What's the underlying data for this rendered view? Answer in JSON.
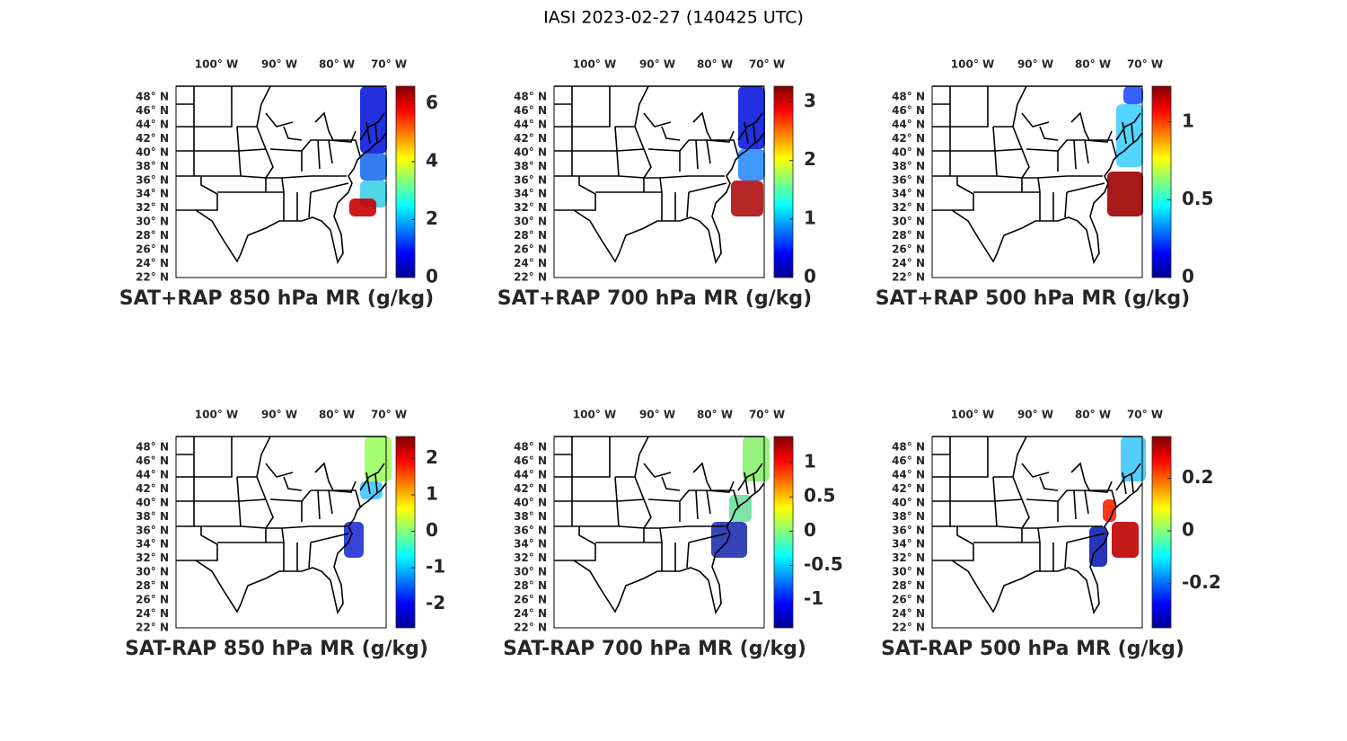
{
  "title": "IASI 2023-02-27 (140425 UTC)",
  "panels": [
    {
      "label": "SAT+RAP 850 hPa MR (g/kg)",
      "lon_ticks": [
        "100° W",
        "90° W",
        "80° W",
        "70° W"
      ],
      "lat_ticks": [
        "48° N",
        "46° N",
        "44° N",
        "42° N",
        "40° N",
        "38° N",
        "36° N",
        "34° N",
        "32° N",
        "30° N",
        "28° N",
        "26° N",
        "24° N",
        "22° N"
      ],
      "colorbar": {
        "lim": [
          0,
          6.6
        ],
        "ticks": [
          0,
          2,
          4,
          6
        ]
      }
    },
    {
      "label": "SAT+RAP 700 hPa MR (g/kg)",
      "lon_ticks": [
        "100° W",
        "90° W",
        "80° W",
        "70° W"
      ],
      "lat_ticks": [
        "48° N",
        "46° N",
        "44° N",
        "42° N",
        "40° N",
        "38° N",
        "36° N",
        "34° N",
        "32° N",
        "30° N",
        "28° N",
        "26° N",
        "24° N",
        "22° N"
      ],
      "colorbar": {
        "lim": [
          0,
          3.27
        ],
        "ticks": [
          0,
          1,
          2,
          3
        ]
      }
    },
    {
      "label": "SAT+RAP 500 hPa MR (g/kg)",
      "lon_ticks": [
        "100° W",
        "90° W",
        "80° W",
        "70° W"
      ],
      "lat_ticks": [
        "48° N",
        "46° N",
        "44° N",
        "42° N",
        "40° N",
        "38° N",
        "36° N",
        "34° N",
        "32° N",
        "30° N",
        "28° N",
        "26° N",
        "24° N",
        "22° N"
      ],
      "colorbar": {
        "lim": [
          0,
          1.23
        ],
        "ticks": [
          0,
          0.5,
          1
        ]
      }
    },
    {
      "label": "SAT-RAP 850 hPa MR (g/kg)",
      "lon_ticks": [
        "100° W",
        "90° W",
        "80° W",
        "70° W"
      ],
      "lat_ticks": [
        "48° N",
        "46° N",
        "44° N",
        "42° N",
        "40° N",
        "38° N",
        "36° N",
        "34° N",
        "32° N",
        "30° N",
        "28° N",
        "26° N",
        "24° N",
        "22° N"
      ],
      "colorbar": {
        "lim": [
          -2.65,
          2.6
        ],
        "ticks": [
          -2,
          -1,
          0,
          1,
          2
        ]
      }
    },
    {
      "label": "SAT-RAP 700 hPa MR (g/kg)",
      "lon_ticks": [
        "100° W",
        "90° W",
        "80° W",
        "70° W"
      ],
      "lat_ticks": [
        "48° N",
        "46° N",
        "44° N",
        "42° N",
        "40° N",
        "38° N",
        "36° N",
        "34° N",
        "32° N",
        "30° N",
        "28° N",
        "26° N",
        "24° N",
        "22° N"
      ],
      "colorbar": {
        "lim": [
          -1.41,
          1.38
        ],
        "ticks": [
          -1,
          -0.5,
          0,
          0.5,
          1
        ]
      }
    },
    {
      "label": "SAT-RAP 500 hPa MR (g/kg)",
      "lon_ticks": [
        "100° W",
        "90° W",
        "80° W",
        "70° W"
      ],
      "lat_ticks": [
        "48° N",
        "46° N",
        "44° N",
        "42° N",
        "40° N",
        "38° N",
        "36° N",
        "34° N",
        "32° N",
        "30° N",
        "28° N",
        "26° N",
        "24° N",
        "22° N"
      ],
      "colorbar": {
        "lim": [
          -0.37,
          0.36
        ],
        "ticks": [
          -0.2,
          0,
          0.2
        ]
      }
    }
  ]
}
